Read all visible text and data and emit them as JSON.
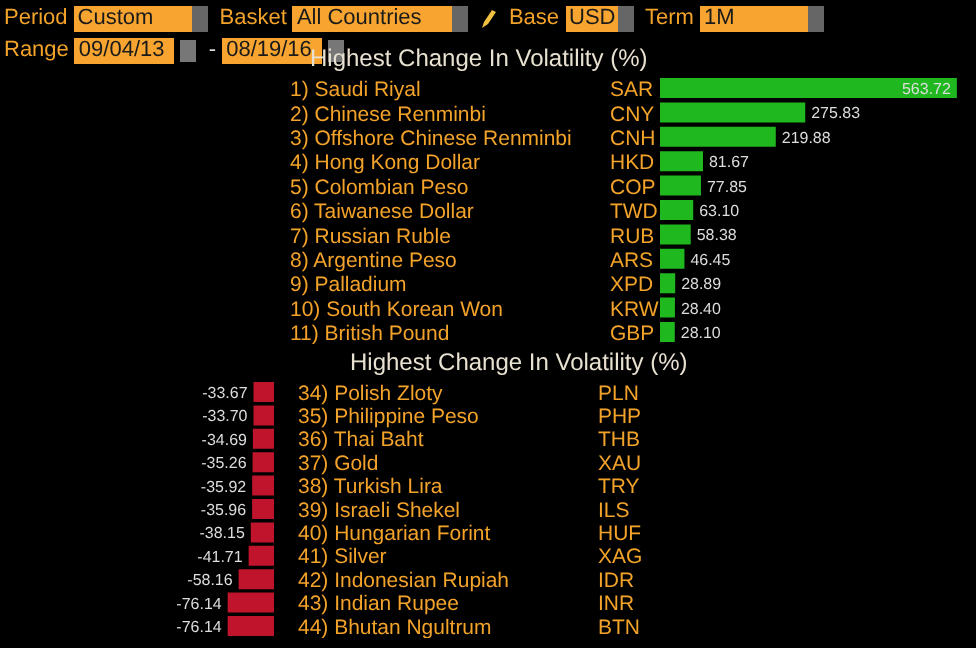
{
  "chart_data": [
    {
      "type": "other",
      "annotations": [
        "Period",
        "Custom",
        "Basket",
        "All Countries",
        "Base",
        "USD",
        "Term",
        "1M",
        "Range",
        "09/04/13",
        "-",
        "08/19/16"
      ]
    },
    {
      "type": "bar",
      "orientation": "horizontal",
      "title": "Highest Change In Volatility (%)",
      "categories": [
        "1) Saudi Riyal",
        "2) Chinese Renminbi",
        "3) Offshore Chinese Renminbi",
        "4) Hong Kong Dollar",
        "5) Colombian Peso",
        "6) Taiwanese Dollar",
        "7) Russian Ruble",
        "8) Argentine Peso",
        "9) Palladium",
        "10) South Korean Won",
        "11) British Pound"
      ],
      "values": [
        563.72,
        275.83,
        219.88,
        81.67,
        77.85,
        63.1,
        58.38,
        46.45,
        28.89,
        28.4,
        28.1
      ],
      "value_labels": [
        "563.72",
        "275.83",
        "219.88",
        "81.67",
        "77.85",
        "63.10",
        "58.38",
        "46.45",
        "28.89",
        "28.40",
        "28.10"
      ],
      "color": "#1fb81f",
      "xlim": [
        0,
        600
      ],
      "tick_labels": "y",
      "annotations": [
        "SAR",
        "CNY",
        "CNH",
        "HKD",
        "COP",
        "TWD",
        "RUB",
        "ARS",
        "XPD",
        "KRW",
        "GBP"
      ]
    },
    {
      "type": "bar",
      "orientation": "horizontal",
      "title": "Highest Change In Volatility (%)",
      "categories": [
        "34) Polish Zloty",
        "35) Philippine Peso",
        "36) Thai Baht",
        "37) Gold",
        "38) Turkish Lira",
        "39) Israeli Shekel",
        "40) Hungarian Forint",
        "41) Silver",
        "42) Indonesian Rupiah",
        "43) Indian Rupee",
        "44) Bhutan Ngultrum"
      ],
      "values": [
        -33.67,
        -33.7,
        -34.69,
        -35.26,
        -35.92,
        -35.96,
        -38.15,
        -41.71,
        -58.16,
        -76.14,
        -76.14
      ],
      "value_labels": [
        "-33.67",
        "-33.70",
        "-34.69",
        "-35.26",
        "-35.92",
        "-35.96",
        "-38.15",
        "-41.71",
        "-58.16",
        "-76.14",
        "-76.14"
      ],
      "color": "#c0142c",
      "xlim": [
        -450,
        0
      ],
      "tick_labels": "y",
      "annotations": [
        "PLN",
        "PHP",
        "THB",
        "XAU",
        "TRY",
        "ILS",
        "HUF",
        "XAG",
        "IDR",
        "INR",
        "BTN"
      ]
    }
  ]
}
